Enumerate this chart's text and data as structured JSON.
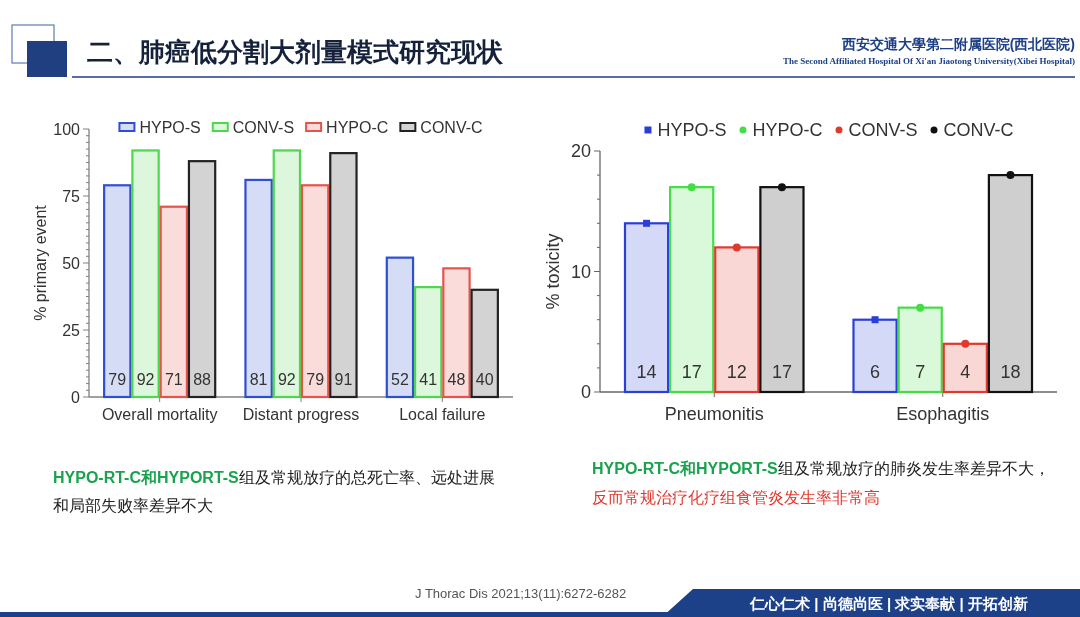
{
  "chart_data": [
    {
      "type": "other",
      "title": "二、肺癌低分割大剂量模式研究现状",
      "annotations": [
        "西安交通大學第二附属医院(西北医院)",
        "The Second Affiliated Hospital Of Xi'an Jiaotong University(Xibei Hospital)",
        "J Thorac Dis 2021;13(11):6272-6282",
        "仁心仁术 | 尚德尚医 | 求实奉献 | 开拓创新"
      ]
    },
    {
      "type": "bar",
      "ylabel": "% primary event",
      "categories": [
        "Overall mortality",
        "Distant progress",
        "Local failure"
      ],
      "series": [
        {
          "name": "HYPO-S",
          "color": "#2f4fd0",
          "values": [
            79,
            81,
            52
          ]
        },
        {
          "name": "CONV-S",
          "color": "#4fd64f",
          "values": [
            92,
            92,
            41
          ]
        },
        {
          "name": "HYPO-C",
          "color": "#e5544b",
          "values": [
            71,
            79,
            48
          ]
        },
        {
          "name": "CONV-C",
          "color": "#222222",
          "values": [
            88,
            91,
            40
          ]
        }
      ],
      "ylim": [
        0,
        100
      ],
      "yticks": [
        0,
        {
          "value": 2.5,
          "label": null
        },
        {
          "value": 5,
          "label": null
        },
        {
          "value": 7.5,
          "label": null
        },
        {
          "value": 10,
          "label": null
        },
        {
          "value": 12.5,
          "label": null
        },
        {
          "value": 15,
          "label": null
        },
        {
          "value": 17.5,
          "label": null
        },
        {
          "value": 20,
          "label": null
        },
        {
          "value": 22.5,
          "label": null
        },
        25,
        {
          "value": 27.5,
          "label": null
        },
        {
          "value": 30,
          "label": null
        },
        {
          "value": 32.5,
          "label": null
        },
        {
          "value": 35,
          "label": null
        },
        {
          "value": 37.5,
          "label": null
        },
        {
          "value": 40,
          "label": null
        },
        {
          "value": 42.5,
          "label": null
        },
        {
          "value": 45,
          "label": null
        },
        {
          "value": 47.5,
          "label": null
        },
        50,
        {
          "value": 52.5,
          "label": null
        },
        {
          "value": 55,
          "label": null
        },
        {
          "value": 57.5,
          "label": null
        },
        {
          "value": 60,
          "label": null
        },
        {
          "value": 62.5,
          "label": null
        },
        {
          "value": 65,
          "label": null
        },
        {
          "value": 67.5,
          "label": null
        },
        {
          "value": 70,
          "label": null
        },
        {
          "value": 72.5,
          "label": null
        },
        75,
        {
          "value": 77.5,
          "label": null
        },
        {
          "value": 80,
          "label": null
        },
        {
          "value": 82.5,
          "label": null
        },
        {
          "value": 85,
          "label": null
        },
        {
          "value": 87.5,
          "label": null
        },
        {
          "value": 90,
          "label": null
        },
        {
          "value": 92.5,
          "label": null
        },
        {
          "value": 95,
          "label": null
        },
        {
          "value": 97.5,
          "label": null
        },
        100
      ],
      "data_labels": true,
      "legend": "top",
      "annotations": [
        "HYPO-RT-C和HYPORT-S",
        "组及常规放疗的总死亡率、远处进展",
        "和局部失败率差异不大"
      ]
    },
    {
      "type": "bar",
      "ylabel": "% toxicity",
      "categories": [
        "Pneumonitis",
        "Esophagitis"
      ],
      "series": [
        {
          "color": "#2a3fd6",
          "values": [
            14,
            6
          ],
          "value_labels": [
            "14",
            "6"
          ]
        },
        {
          "color": "#44dd44",
          "values": [
            17,
            7
          ],
          "value_labels": [
            "17",
            "7"
          ]
        },
        {
          "color": "#e0392f",
          "values": [
            12,
            4
          ],
          "value_labels": [
            "12",
            "4"
          ]
        },
        {
          "color": "#111111",
          "values": [
            17,
            18
          ],
          "value_labels": [
            "17",
            "18"
          ]
        },
        {
          "type": "scatter",
          "name": "HYPO-S",
          "color": "#2a3fd6",
          "marker": "square",
          "values": [
            14,
            6
          ]
        },
        {
          "type": "scatter",
          "name": "HYPO-C",
          "color": "#44dd44",
          "values": [
            17,
            7
          ]
        },
        {
          "type": "scatter",
          "name": "CONV-S",
          "color": "#e0392f",
          "values": [
            12,
            4
          ]
        },
        {
          "type": "scatter",
          "name": "CONV-C",
          "color": "#111111",
          "values": [
            17,
            18
          ]
        }
      ],
      "marker": "circle",
      "ylim": [
        0,
        20
      ],
      "yticks": [
        0,
        {
          "value": 2,
          "label": null
        },
        {
          "value": 4,
          "label": null
        },
        {
          "value": 6,
          "label": null
        },
        {
          "value": 8,
          "label": null
        },
        10,
        {
          "value": 12,
          "label": null
        },
        {
          "value": 14,
          "label": null
        },
        {
          "value": 16,
          "label": null
        },
        {
          "value": 18,
          "label": null
        },
        20
      ],
      "legend": "top",
      "annotations": [
        "HYPO-RT-C和HYPORT-S",
        "组及常规放疗的肺炎发生率差异不大，",
        "反而常规治疗化疗组食管炎发生率非常高"
      ]
    }
  ]
}
